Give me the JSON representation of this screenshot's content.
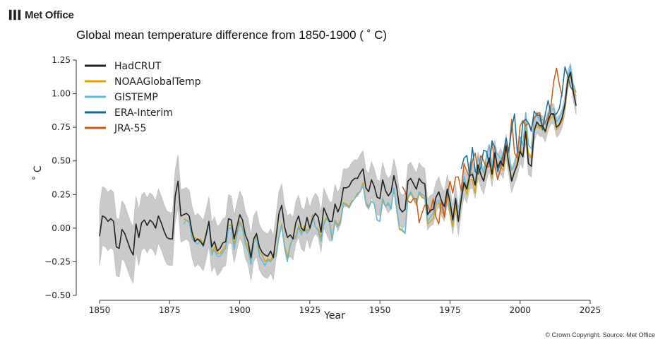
{
  "brand": {
    "name": "Met Office"
  },
  "footer": {
    "copyright": "© Crown Copyright. Source: Met Office"
  },
  "colors": {
    "hadcrut": "#222222",
    "noaa": "#e0a100",
    "gistemp": "#5fb9de",
    "era": "#126d9c",
    "jra": "#cc5a17",
    "uncertainty": "#c8c8c8"
  },
  "chart_data": {
    "type": "line",
    "title": "Global mean temperature difference from 1850-1900 ( ˚ C)",
    "xlabel": "Year",
    "ylabel": "˚ C",
    "xlim": [
      1846,
      2026
    ],
    "ylim": [
      -0.5,
      1.27
    ],
    "x_ticks": [
      1850,
      1875,
      1900,
      1925,
      1950,
      1975,
      2000,
      2025
    ],
    "y_ticks": [
      1.25,
      1.0,
      0.75,
      0.5,
      0.25,
      0.0,
      -0.25,
      -0.5
    ],
    "y_tick_labels": [
      "1.25",
      "1.00",
      "0.75",
      "0.50",
      "0.25",
      "0.00",
      "−0.25",
      "−0.50"
    ],
    "grid": false,
    "legend_position": "top-left",
    "series": [
      {
        "name": "HadCRUT",
        "color_key": "hadcrut",
        "start": 1850,
        "values": [
          -0.06,
          0.09,
          0.08,
          0.05,
          0.07,
          0.05,
          -0.14,
          -0.15,
          -0.01,
          -0.04,
          -0.1,
          -0.16,
          -0.2,
          0.03,
          -0.07,
          0.04,
          0.06,
          0.02,
          0.06,
          0.04,
          0.0,
          0.09,
          0.04,
          -0.02,
          -0.07,
          -0.08,
          -0.08,
          0.24,
          0.35,
          0.09,
          0.1,
          0.11,
          0.09,
          -0.03,
          -0.1,
          -0.08,
          -0.1,
          -0.13,
          -0.05,
          0.05,
          -0.14,
          -0.1,
          -0.17,
          -0.15,
          -0.11,
          -0.1,
          0.07,
          0.06,
          -0.08,
          0.01,
          0.1,
          0.06,
          -0.05,
          -0.1,
          -0.22,
          -0.08,
          -0.04,
          -0.14,
          -0.18,
          -0.2,
          -0.21,
          -0.17,
          -0.22,
          -0.06,
          0.11,
          0.17,
          0.01,
          -0.07,
          -0.05,
          -0.08,
          0.04,
          0.09,
          0.0,
          -0.02,
          0.08,
          0.0,
          0.07,
          0.11,
          0.08,
          -0.03,
          0.15,
          0.1,
          0.05,
          0.05,
          0.18,
          0.12,
          0.17,
          0.3,
          0.3,
          0.31,
          0.35,
          0.37,
          0.37,
          0.41,
          0.44,
          0.3,
          0.27,
          0.36,
          0.31,
          0.23,
          0.22,
          0.36,
          0.28,
          0.24,
          0.27,
          0.39,
          0.3,
          0.15,
          0.12,
          0.14,
          0.35,
          0.37,
          0.33,
          0.29,
          0.37,
          0.34,
          0.33,
          0.1,
          0.13,
          0.14,
          0.23,
          0.27,
          0.2,
          0.16,
          0.29,
          0.2,
          0.06,
          0.22,
          0.05,
          0.21,
          0.34,
          0.29,
          0.39,
          0.4,
          0.32,
          0.47,
          0.4,
          0.35,
          0.45,
          0.52,
          0.4,
          0.56,
          0.45,
          0.5,
          0.46,
          0.61,
          0.48,
          0.35,
          0.42,
          0.47,
          0.57,
          0.53,
          0.72,
          0.48,
          0.46,
          0.72,
          0.79,
          0.76,
          0.76,
          0.72,
          0.8,
          0.85,
          0.85,
          0.75,
          0.77,
          0.82,
          0.92,
          1.1,
          1.16,
          1.01,
          0.91
        ]
      },
      {
        "name": "NOAAGlobalTemp",
        "color_key": "noaa",
        "start": 1880,
        "values": [
          0.07,
          0.06,
          0.04,
          -0.06,
          -0.07,
          -0.09,
          -0.08,
          -0.12,
          -0.04,
          0.04,
          -0.18,
          -0.14,
          -0.19,
          -0.19,
          -0.16,
          -0.13,
          0.02,
          0.02,
          -0.12,
          -0.03,
          0.05,
          0.01,
          -0.1,
          -0.14,
          -0.24,
          -0.1,
          -0.05,
          -0.18,
          -0.2,
          -0.25,
          -0.23,
          -0.24,
          -0.2,
          -0.19,
          -0.06,
          0.03,
          -0.13,
          -0.22,
          -0.12,
          -0.08,
          -0.06,
          0.02,
          -0.03,
          0.02,
          -0.02,
          0.0,
          0.1,
          0.01,
          -0.01,
          -0.07,
          0.04,
          0.08,
          0.05,
          -0.08,
          0.06,
          0.02,
          0.06,
          0.19,
          0.18,
          0.16,
          0.2,
          0.22,
          0.26,
          0.27,
          0.34,
          0.19,
          0.16,
          0.2,
          0.18,
          0.06,
          0.05,
          0.2,
          0.16,
          0.18,
          0.15,
          0.29,
          0.13,
          -0.01,
          -0.02,
          -0.04,
          0.22,
          0.26,
          0.22,
          0.17,
          0.26,
          0.23,
          0.22,
          0.03,
          0.05,
          0.07,
          0.17,
          0.19,
          0.12,
          0.1,
          0.25,
          0.11,
          0.01,
          0.17,
          0.05,
          0.2,
          0.33,
          0.25,
          0.36,
          0.36,
          0.26,
          0.45,
          0.39,
          0.35,
          0.48,
          0.51,
          0.37,
          0.54,
          0.47,
          0.46,
          0.43,
          0.6,
          0.45,
          0.36,
          0.41,
          0.5,
          0.6,
          0.53,
          0.78,
          0.55,
          0.52,
          0.74,
          0.77,
          0.74,
          0.76,
          0.71,
          0.79,
          0.82,
          0.83,
          0.73,
          0.76,
          0.8,
          0.9,
          1.07,
          1.14,
          1.04,
          0.98
        ]
      },
      {
        "name": "GISTEMP",
        "color_key": "gistemp",
        "start": 1880,
        "values": [
          0.03,
          0.06,
          0.05,
          -0.08,
          -0.1,
          -0.12,
          -0.09,
          -0.14,
          -0.06,
          0.04,
          -0.2,
          -0.16,
          -0.21,
          -0.21,
          -0.18,
          -0.15,
          0.0,
          0.0,
          -0.16,
          -0.05,
          0.04,
          0.0,
          -0.12,
          -0.17,
          -0.27,
          -0.11,
          -0.07,
          -0.21,
          -0.24,
          -0.28,
          -0.24,
          -0.25,
          -0.22,
          -0.21,
          -0.07,
          0.02,
          -0.15,
          -0.25,
          -0.13,
          -0.08,
          -0.08,
          0.01,
          -0.05,
          0.0,
          -0.04,
          -0.01,
          0.09,
          0.01,
          -0.02,
          -0.1,
          0.03,
          0.07,
          0.04,
          -0.09,
          0.05,
          0.01,
          0.04,
          0.18,
          0.17,
          0.15,
          0.19,
          0.22,
          0.25,
          0.27,
          0.32,
          0.18,
          0.15,
          0.2,
          0.18,
          0.06,
          0.05,
          0.22,
          0.16,
          0.19,
          0.14,
          0.3,
          0.14,
          0.0,
          -0.01,
          -0.04,
          0.24,
          0.27,
          0.23,
          0.18,
          0.27,
          0.25,
          0.24,
          0.05,
          0.08,
          0.11,
          0.19,
          0.21,
          0.15,
          0.11,
          0.29,
          0.15,
          0.04,
          0.23,
          0.08,
          0.25,
          0.38,
          0.3,
          0.41,
          0.41,
          0.32,
          0.53,
          0.47,
          0.41,
          0.54,
          0.62,
          0.45,
          0.57,
          0.55,
          0.52,
          0.51,
          0.67,
          0.56,
          0.43,
          0.47,
          0.57,
          0.68,
          0.62,
          0.86,
          0.62,
          0.59,
          0.81,
          0.84,
          0.8,
          0.81,
          0.77,
          0.85,
          0.88,
          0.89,
          0.79,
          0.82,
          0.86,
          0.94,
          1.1,
          1.21,
          1.07,
          1.01
        ]
      },
      {
        "name": "ERA-Interim",
        "color_key": "era",
        "start": 1979,
        "values": [
          0.44,
          0.52,
          0.54,
          0.4,
          0.6,
          0.42,
          0.4,
          0.45,
          0.58,
          0.57,
          0.48,
          0.65,
          0.6,
          0.42,
          0.48,
          0.55,
          0.67,
          0.57,
          0.74,
          0.85,
          0.57,
          0.56,
          0.79,
          0.81,
          0.78,
          0.72,
          0.87,
          0.84,
          0.84,
          0.73,
          0.85,
          0.95,
          0.85,
          0.84,
          0.85,
          0.89,
          1.01,
          1.2,
          1.13,
          1.05,
          1.02
        ]
      },
      {
        "name": "JRA-55",
        "color_key": "jra",
        "start": 1958,
        "values": [
          0.31,
          0.27,
          0.2,
          0.19,
          0.22,
          0.22,
          0.04,
          0.11,
          0.17,
          0.17,
          0.12,
          0.22,
          0.08,
          0.03,
          0.21,
          0.08,
          0.24,
          0.35,
          0.26,
          0.38,
          0.38,
          0.28,
          0.48,
          0.42,
          0.38,
          0.5,
          0.56,
          0.4,
          0.54,
          0.5,
          0.45,
          0.46,
          0.64,
          0.46,
          0.36,
          0.44,
          0.52,
          0.63,
          0.56,
          0.81,
          0.56,
          0.52,
          0.76,
          0.8,
          0.76,
          0.78,
          0.74,
          0.82,
          0.85,
          0.86,
          0.76,
          0.79,
          0.82,
          0.91,
          1.09,
          1.19,
          1.07,
          0.98
        ]
      }
    ]
  }
}
